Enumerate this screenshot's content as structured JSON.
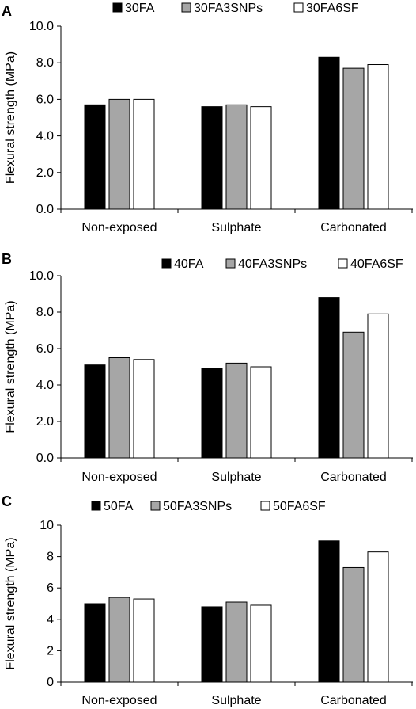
{
  "chart_data": [
    {
      "panel_label": "A",
      "type": "bar",
      "categories": [
        "Non-exposed",
        "Sulphate",
        "Carbonated"
      ],
      "series": [
        {
          "name": "30FA",
          "values": [
            5.7,
            5.6,
            8.3
          ],
          "color": "#000000"
        },
        {
          "name": "30FA3SNPs",
          "values": [
            6.0,
            5.7,
            7.7
          ],
          "color": "#a6a6a6"
        },
        {
          "name": "30FA6SF",
          "values": [
            6.0,
            5.6,
            7.9
          ],
          "color": "#ffffff"
        }
      ],
      "ylabel": "Flexural strength (MPa)",
      "ylim": [
        0,
        10
      ],
      "yticks": [
        "0.0",
        "2.0",
        "4.0",
        "6.0",
        "8.0",
        "10.0"
      ],
      "grid": false,
      "legend": "top"
    },
    {
      "panel_label": "B",
      "type": "bar",
      "categories": [
        "Non-exposed",
        "Sulphate",
        "Carbonated"
      ],
      "series": [
        {
          "name": "40FA",
          "values": [
            5.1,
            4.9,
            8.8
          ],
          "color": "#000000"
        },
        {
          "name": "40FA3SNPs",
          "values": [
            5.5,
            5.2,
            6.9
          ],
          "color": "#a6a6a6"
        },
        {
          "name": "40FA6SF",
          "values": [
            5.4,
            5.0,
            7.9
          ],
          "color": "#ffffff"
        }
      ],
      "ylabel": "Flexural strength (MPa)",
      "ylim": [
        0,
        10
      ],
      "yticks": [
        "0.0",
        "2.0",
        "4.0",
        "6.0",
        "8.0",
        "10.0"
      ],
      "grid": false,
      "legend": "top-right"
    },
    {
      "panel_label": "C",
      "type": "bar",
      "categories": [
        "Non-exposed",
        "Sulphate",
        "Carbonated"
      ],
      "series": [
        {
          "name": "50FA",
          "values": [
            5.0,
            4.8,
            9.0
          ],
          "color": "#000000"
        },
        {
          "name": "50FA3SNPs",
          "values": [
            5.4,
            5.1,
            7.3
          ],
          "color": "#a6a6a6"
        },
        {
          "name": "50FA6SF",
          "values": [
            5.3,
            4.9,
            8.3
          ],
          "color": "#ffffff"
        }
      ],
      "ylabel": "Flexural strength (MPa)",
      "ylim": [
        0,
        10
      ],
      "yticks": [
        "0",
        "2",
        "4",
        "6",
        "8",
        "10"
      ],
      "grid": false,
      "legend": "top"
    }
  ]
}
